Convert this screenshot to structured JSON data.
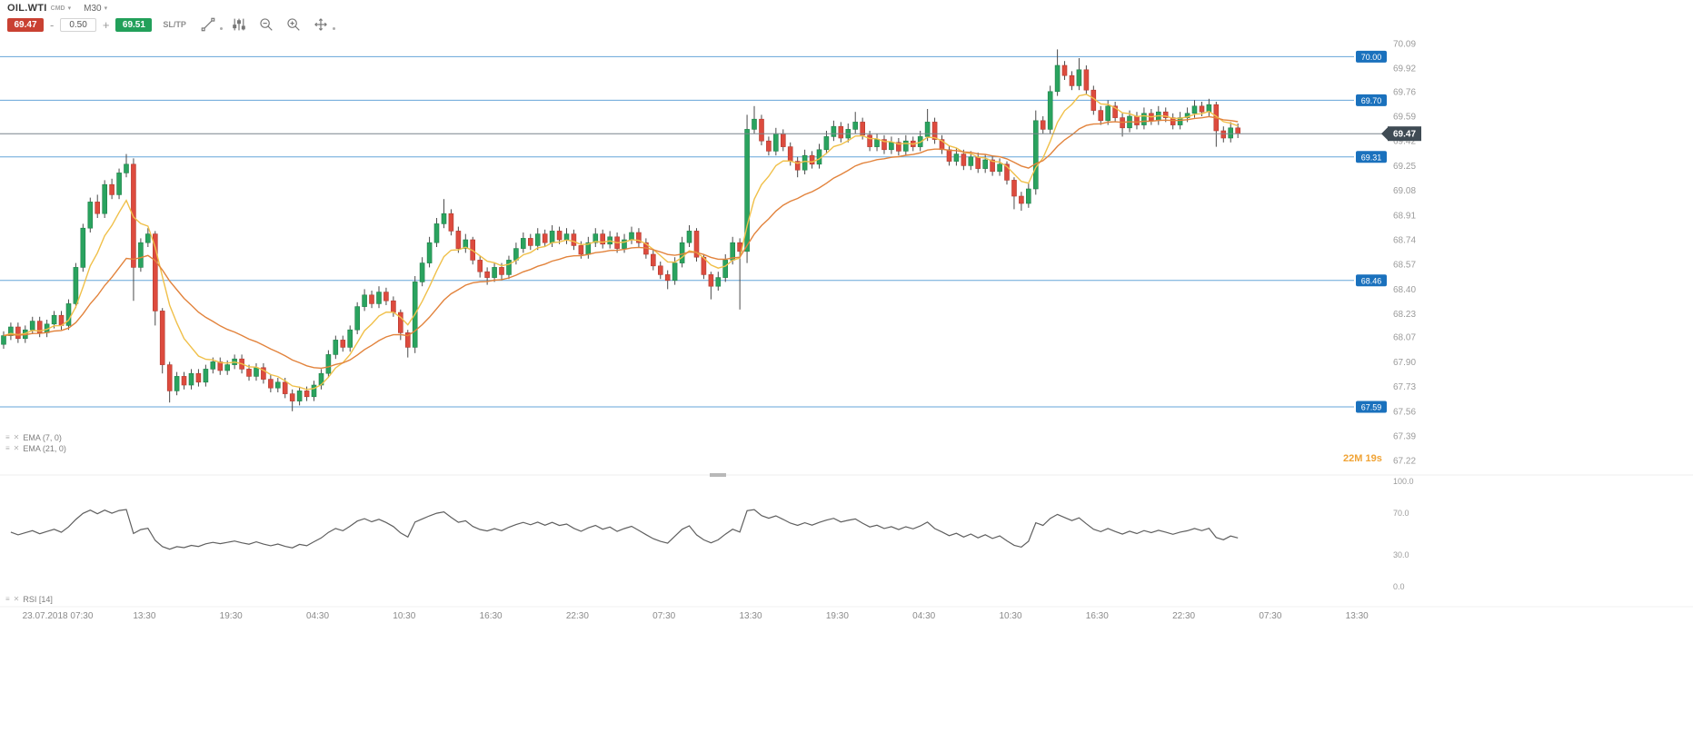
{
  "toolbar": {
    "symbol": "OIL.WTI",
    "symbol_type": "CMD",
    "timeframe": "M30",
    "sell_price": "69.47",
    "buy_price": "69.51",
    "volume": "0.50",
    "minus_label": "-",
    "plus_label": "+",
    "sltp_label": "SL/TP"
  },
  "chart": {
    "countdown": "22M 19s"
  },
  "colors": {
    "sell": "#c94132",
    "buy": "#22a05a",
    "up": "#2aa35f",
    "up_border": "#1f8048",
    "down": "#dd4b3e",
    "down_border": "#b23a2f",
    "wick": "#4a4a4a",
    "ema_fast": "#f0c04a",
    "ema_slow": "#e2833c",
    "level_line": "#66a5d8",
    "level_badge": "#1a71bd",
    "price_line": "#78848c",
    "price_badge": "#3f4b54",
    "rsi_line": "#5f5f5f",
    "countdown": "#f0a335"
  },
  "chart_data": {
    "type": "candlestick",
    "symbol": "OIL.WTI",
    "timeframe": "M30",
    "price_top": 70.14,
    "price_bottom": 67.14,
    "total_slots": 192,
    "y_tick_labels": [
      "70.09",
      "69.92",
      "69.76",
      "69.59",
      "69.42",
      "69.25",
      "69.08",
      "68.91",
      "68.74",
      "68.57",
      "68.40",
      "68.23",
      "68.07",
      "67.90",
      "67.73",
      "67.56",
      "67.39",
      "67.22"
    ],
    "x_tick_labels": [
      "23.07.2018 07:30",
      "13:30",
      "19:30",
      "04:30",
      "10:30",
      "16:30",
      "22:30",
      "07:30",
      "13:30",
      "19:30",
      "04:30",
      "10:30",
      "16:30",
      "22:30",
      "07:30",
      "13:30"
    ],
    "x_tick_slots": [
      8,
      20,
      32,
      44,
      56,
      68,
      80,
      92,
      104,
      116,
      128,
      140,
      152,
      164,
      176,
      188
    ],
    "levels": [
      {
        "price": 70.0,
        "label": "70.00"
      },
      {
        "price": 69.7,
        "label": "69.70"
      },
      {
        "price": 69.31,
        "label": "69.31"
      },
      {
        "price": 68.46,
        "label": "68.46"
      },
      {
        "price": 67.59,
        "label": "67.59"
      }
    ],
    "current_price": {
      "value": 69.47,
      "label": "69.47"
    },
    "overlays": [
      {
        "name": "EMA (7, 0)",
        "period": 7,
        "color_key": "ema_fast"
      },
      {
        "name": "EMA (21, 0)",
        "period": 21,
        "color_key": "ema_slow"
      }
    ],
    "indicator": {
      "name": "RSI [14]",
      "period": 14,
      "range": [
        0,
        100
      ],
      "tick_labels": [
        "100.0",
        "70.0",
        "30.0",
        "0.0"
      ]
    },
    "candles": [
      [
        68.02,
        68.11,
        67.99,
        68.08
      ],
      [
        68.08,
        68.17,
        68.05,
        68.14
      ],
      [
        68.14,
        68.17,
        68.03,
        68.06
      ],
      [
        68.06,
        68.15,
        68.03,
        68.12
      ],
      [
        68.12,
        68.21,
        68.09,
        68.18
      ],
      [
        68.18,
        68.21,
        68.07,
        68.1
      ],
      [
        68.1,
        68.19,
        68.07,
        68.16
      ],
      [
        68.16,
        68.25,
        68.13,
        68.22
      ],
      [
        68.22,
        68.25,
        68.12,
        68.15
      ],
      [
        68.15,
        68.33,
        68.12,
        68.3
      ],
      [
        68.3,
        68.58,
        68.27,
        68.55
      ],
      [
        68.55,
        68.85,
        68.52,
        68.82
      ],
      [
        68.82,
        69.03,
        68.79,
        69.0
      ],
      [
        69.0,
        69.05,
        68.89,
        68.92
      ],
      [
        68.92,
        69.15,
        68.89,
        69.12
      ],
      [
        69.12,
        69.16,
        69.02,
        69.05
      ],
      [
        69.05,
        69.23,
        69.02,
        69.2
      ],
      [
        69.2,
        69.33,
        69.17,
        69.26
      ],
      [
        69.26,
        69.3,
        68.32,
        68.55
      ],
      [
        68.55,
        68.75,
        68.52,
        68.72
      ],
      [
        68.72,
        68.82,
        68.69,
        68.78
      ],
      [
        68.78,
        68.8,
        68.15,
        68.25
      ],
      [
        68.25,
        68.27,
        67.82,
        67.88
      ],
      [
        67.88,
        67.9,
        67.62,
        67.7
      ],
      [
        67.7,
        67.83,
        67.67,
        67.8
      ],
      [
        67.8,
        67.83,
        67.71,
        67.74
      ],
      [
        67.74,
        67.85,
        67.71,
        67.82
      ],
      [
        67.82,
        67.85,
        67.73,
        67.76
      ],
      [
        67.76,
        67.88,
        67.73,
        67.85
      ],
      [
        67.85,
        67.93,
        67.82,
        67.9
      ],
      [
        67.9,
        67.93,
        67.81,
        67.84
      ],
      [
        67.84,
        67.91,
        67.81,
        67.88
      ],
      [
        67.88,
        67.95,
        67.85,
        67.92
      ],
      [
        67.92,
        67.95,
        67.82,
        67.85
      ],
      [
        67.85,
        67.88,
        67.77,
        67.8
      ],
      [
        67.8,
        67.89,
        67.77,
        67.86
      ],
      [
        67.86,
        67.89,
        67.75,
        67.78
      ],
      [
        67.78,
        67.81,
        67.69,
        67.72
      ],
      [
        67.72,
        67.79,
        67.69,
        67.76
      ],
      [
        67.76,
        67.79,
        67.65,
        67.68
      ],
      [
        67.68,
        67.71,
        67.56,
        67.63
      ],
      [
        67.63,
        67.73,
        67.6,
        67.7
      ],
      [
        67.7,
        67.73,
        67.63,
        67.66
      ],
      [
        67.66,
        67.77,
        67.63,
        67.74
      ],
      [
        67.74,
        67.85,
        67.71,
        67.82
      ],
      [
        67.82,
        67.98,
        67.79,
        67.95
      ],
      [
        67.95,
        68.08,
        67.92,
        68.05
      ],
      [
        68.05,
        68.08,
        67.97,
        68.0
      ],
      [
        68.0,
        68.15,
        67.97,
        68.12
      ],
      [
        68.12,
        68.31,
        68.09,
        68.28
      ],
      [
        68.28,
        68.4,
        68.25,
        68.36
      ],
      [
        68.36,
        68.39,
        68.27,
        68.3
      ],
      [
        68.3,
        68.42,
        68.27,
        68.38
      ],
      [
        68.38,
        68.41,
        68.29,
        68.32
      ],
      [
        68.32,
        68.35,
        68.21,
        68.24
      ],
      [
        68.24,
        68.26,
        68.05,
        68.1
      ],
      [
        68.1,
        68.12,
        67.93,
        68.0
      ],
      [
        68.0,
        68.49,
        67.96,
        68.45
      ],
      [
        68.45,
        68.62,
        68.42,
        68.58
      ],
      [
        68.58,
        68.76,
        68.55,
        68.72
      ],
      [
        68.72,
        68.89,
        68.69,
        68.85
      ],
      [
        68.85,
        69.02,
        68.82,
        68.92
      ],
      [
        68.92,
        68.95,
        68.77,
        68.8
      ],
      [
        68.8,
        68.83,
        68.65,
        68.68
      ],
      [
        68.68,
        68.78,
        68.65,
        68.74
      ],
      [
        68.74,
        68.76,
        68.57,
        68.6
      ],
      [
        68.6,
        68.63,
        68.48,
        68.52
      ],
      [
        68.52,
        68.55,
        68.43,
        68.48
      ],
      [
        68.48,
        68.58,
        68.45,
        68.55
      ],
      [
        68.55,
        68.58,
        68.46,
        68.5
      ],
      [
        68.5,
        68.63,
        68.47,
        68.6
      ],
      [
        68.6,
        68.72,
        68.57,
        68.68
      ],
      [
        68.68,
        68.79,
        68.65,
        68.75
      ],
      [
        68.75,
        68.78,
        68.67,
        68.7
      ],
      [
        68.7,
        68.82,
        68.67,
        68.78
      ],
      [
        68.78,
        68.81,
        68.69,
        68.72
      ],
      [
        68.72,
        68.84,
        68.69,
        68.8
      ],
      [
        68.8,
        68.83,
        68.71,
        68.74
      ],
      [
        68.74,
        68.82,
        68.71,
        68.78
      ],
      [
        68.78,
        68.81,
        68.67,
        68.7
      ],
      [
        68.7,
        68.73,
        68.61,
        68.64
      ],
      [
        68.64,
        68.76,
        68.61,
        68.72
      ],
      [
        68.72,
        68.82,
        68.69,
        68.78
      ],
      [
        68.78,
        68.81,
        68.68,
        68.71
      ],
      [
        68.71,
        68.8,
        68.68,
        68.76
      ],
      [
        68.76,
        68.79,
        68.65,
        68.68
      ],
      [
        68.68,
        68.78,
        68.65,
        68.74
      ],
      [
        68.74,
        68.83,
        68.71,
        68.79
      ],
      [
        68.79,
        68.82,
        68.69,
        68.72
      ],
      [
        68.72,
        68.75,
        68.61,
        68.64
      ],
      [
        68.64,
        68.67,
        68.53,
        68.56
      ],
      [
        68.56,
        68.59,
        68.47,
        68.5
      ],
      [
        68.5,
        68.53,
        68.4,
        68.46
      ],
      [
        68.46,
        68.62,
        68.43,
        68.58
      ],
      [
        68.58,
        68.76,
        68.55,
        68.72
      ],
      [
        68.72,
        68.84,
        68.69,
        68.8
      ],
      [
        68.8,
        68.82,
        68.59,
        68.62
      ],
      [
        68.62,
        68.64,
        68.47,
        68.5
      ],
      [
        68.5,
        68.52,
        68.33,
        68.42
      ],
      [
        68.42,
        68.52,
        68.39,
        68.48
      ],
      [
        68.48,
        68.64,
        68.45,
        68.6
      ],
      [
        68.6,
        68.76,
        68.57,
        68.72
      ],
      [
        68.72,
        68.75,
        68.26,
        68.66
      ],
      [
        68.66,
        69.6,
        68.58,
        69.5
      ],
      [
        69.5,
        69.66,
        69.47,
        69.57
      ],
      [
        69.57,
        69.6,
        69.39,
        69.42
      ],
      [
        69.42,
        69.45,
        69.32,
        69.35
      ],
      [
        69.35,
        69.51,
        69.32,
        69.47
      ],
      [
        69.47,
        69.5,
        69.35,
        69.38
      ],
      [
        69.38,
        69.41,
        69.25,
        69.28
      ],
      [
        69.28,
        69.31,
        69.17,
        69.22
      ],
      [
        69.22,
        69.36,
        69.19,
        69.32
      ],
      [
        69.32,
        69.35,
        69.23,
        69.26
      ],
      [
        69.26,
        69.4,
        69.23,
        69.36
      ],
      [
        69.36,
        69.49,
        69.33,
        69.45
      ],
      [
        69.45,
        69.56,
        69.42,
        69.52
      ],
      [
        69.52,
        69.55,
        69.41,
        69.44
      ],
      [
        69.44,
        69.54,
        69.41,
        69.5
      ],
      [
        69.5,
        69.62,
        69.47,
        69.55
      ],
      [
        69.55,
        69.58,
        69.43,
        69.46
      ],
      [
        69.46,
        69.49,
        69.35,
        69.38
      ],
      [
        69.38,
        69.47,
        69.35,
        69.43
      ],
      [
        69.43,
        69.46,
        69.33,
        69.36
      ],
      [
        69.36,
        69.45,
        69.33,
        69.41
      ],
      [
        69.41,
        69.44,
        69.32,
        69.35
      ],
      [
        69.35,
        69.46,
        69.32,
        69.42
      ],
      [
        69.42,
        69.45,
        69.35,
        69.38
      ],
      [
        69.38,
        69.49,
        69.35,
        69.45
      ],
      [
        69.45,
        69.64,
        69.42,
        69.55
      ],
      [
        69.55,
        69.58,
        69.4,
        69.43
      ],
      [
        69.43,
        69.46,
        69.33,
        69.36
      ],
      [
        69.36,
        69.39,
        69.25,
        69.28
      ],
      [
        69.28,
        69.37,
        69.25,
        69.33
      ],
      [
        69.33,
        69.36,
        69.22,
        69.25
      ],
      [
        69.25,
        69.35,
        69.22,
        69.31
      ],
      [
        69.31,
        69.34,
        69.2,
        69.23
      ],
      [
        69.23,
        69.33,
        69.2,
        69.29
      ],
      [
        69.29,
        69.32,
        69.18,
        69.21
      ],
      [
        69.21,
        69.3,
        69.18,
        69.26
      ],
      [
        69.26,
        69.28,
        69.12,
        69.15
      ],
      [
        69.15,
        69.17,
        68.95,
        69.04
      ],
      [
        69.04,
        69.07,
        68.94,
        68.99
      ],
      [
        68.99,
        69.13,
        68.96,
        69.09
      ],
      [
        69.09,
        69.63,
        69.05,
        69.56
      ],
      [
        69.56,
        69.59,
        69.47,
        69.5
      ],
      [
        69.5,
        69.8,
        69.47,
        69.76
      ],
      [
        69.76,
        70.05,
        69.73,
        69.94
      ],
      [
        69.94,
        69.97,
        69.84,
        69.87
      ],
      [
        69.87,
        69.9,
        69.77,
        69.8
      ],
      [
        69.8,
        69.99,
        69.77,
        69.91
      ],
      [
        69.91,
        69.94,
        69.74,
        69.77
      ],
      [
        69.77,
        69.8,
        69.6,
        69.63
      ],
      [
        69.63,
        69.66,
        69.53,
        69.56
      ],
      [
        69.56,
        69.7,
        69.53,
        69.66
      ],
      [
        69.66,
        69.69,
        69.55,
        69.58
      ],
      [
        69.58,
        69.61,
        69.45,
        69.51
      ],
      [
        69.51,
        69.63,
        69.48,
        69.59
      ],
      [
        69.59,
        69.62,
        69.5,
        69.53
      ],
      [
        69.53,
        69.65,
        69.5,
        69.61
      ],
      [
        69.61,
        69.64,
        69.53,
        69.56
      ],
      [
        69.56,
        69.66,
        69.53,
        69.62
      ],
      [
        69.62,
        69.65,
        69.55,
        69.58
      ],
      [
        69.58,
        69.61,
        69.5,
        69.53
      ],
      [
        69.53,
        69.62,
        69.5,
        69.58
      ],
      [
        69.58,
        69.65,
        69.55,
        69.61
      ],
      [
        69.61,
        69.7,
        69.58,
        69.66
      ],
      [
        69.66,
        69.69,
        69.59,
        69.62
      ],
      [
        69.62,
        69.71,
        69.59,
        69.67
      ],
      [
        69.67,
        69.69,
        69.38,
        69.49
      ],
      [
        69.49,
        69.52,
        69.41,
        69.44
      ],
      [
        69.44,
        69.55,
        69.41,
        69.51
      ],
      [
        69.51,
        69.54,
        69.44,
        69.47
      ]
    ]
  }
}
